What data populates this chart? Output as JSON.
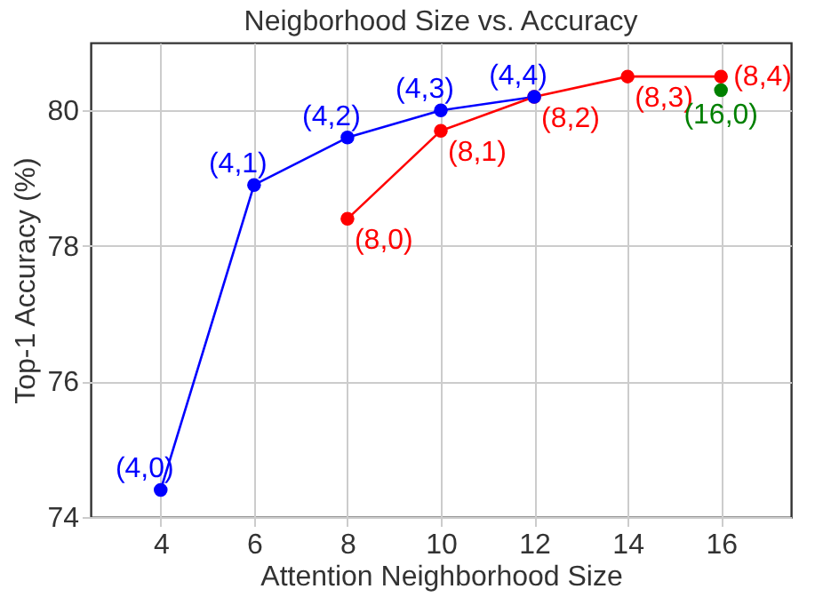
{
  "chart_data": {
    "type": "line",
    "title": "Neigborhood Size vs. Accuracy",
    "xlabel": "Attention Neighborhood Size",
    "ylabel": "Top-1 Accuracy (%)",
    "xlim": [
      2.5,
      17.5
    ],
    "xticks": [
      4,
      6,
      8,
      10,
      12,
      14,
      16
    ],
    "ylim": [
      74,
      81
    ],
    "yticks": [
      74,
      76,
      78,
      80
    ],
    "grid": true,
    "marker": "circle",
    "line_style": "solid",
    "series": [
      {
        "color": "#0000ff",
        "x": [
          4,
          6,
          8,
          10,
          12
        ],
        "values": [
          74.4,
          78.9,
          79.6,
          80.0,
          80.2
        ]
      },
      {
        "color": "#ff0000",
        "x": [
          8,
          10,
          12,
          14,
          16
        ],
        "values": [
          78.4,
          79.7,
          80.2,
          80.5,
          80.5
        ]
      },
      {
        "type": "scatter",
        "color": "#008000",
        "x": [
          16
        ],
        "values": [
          80.3
        ]
      }
    ],
    "annotations": [
      {
        "text": "(4,0)",
        "x": 4,
        "y": 74.4
      },
      {
        "text": "(4,1)",
        "x": 6,
        "y": 78.9
      },
      {
        "text": "(4,2)",
        "x": 8,
        "y": 79.6
      },
      {
        "text": "(4,3)",
        "x": 10,
        "y": 80.0
      },
      {
        "text": "(4,4)",
        "x": 12,
        "y": 80.2
      },
      {
        "text": "(8,0)",
        "x": 8,
        "y": 78.4
      },
      {
        "text": "(8,1)",
        "x": 10,
        "y": 79.7
      },
      {
        "text": "(8,2)",
        "x": 12,
        "y": 80.2
      },
      {
        "text": "(8,3)",
        "x": 14,
        "y": 80.5
      },
      {
        "text": "(8,4)",
        "x": 16,
        "y": 80.5
      },
      {
        "text": "(16,0)",
        "x": 16,
        "y": 80.3
      }
    ]
  }
}
